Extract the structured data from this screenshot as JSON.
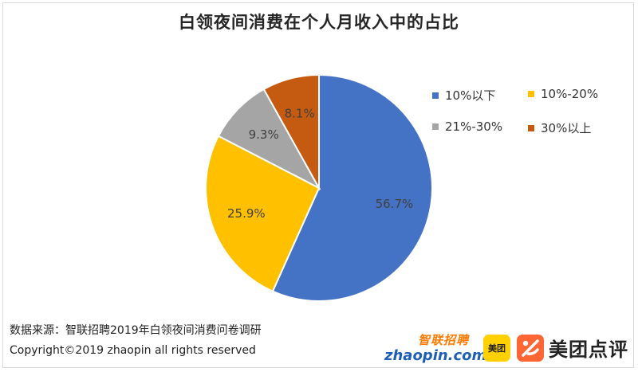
{
  "chart_data": {
    "type": "pie",
    "title": "白领夜间消费在个人月收入中的占比",
    "categories": [
      "10%以下",
      "10%-20%",
      "21%-30%",
      "30%以上"
    ],
    "values": [
      56.7,
      25.9,
      9.3,
      8.1
    ],
    "data_labels": [
      "56.7%",
      "25.9%",
      "9.3%",
      "8.1%"
    ],
    "colors": [
      "#4472c4",
      "#ffc000",
      "#a5a5a5",
      "#c55a11"
    ],
    "legend_position": "right"
  },
  "footer": {
    "source": "数据来源：智联招聘2019年白领夜间消费问卷调研",
    "copyright": "Copyright©2019 zhaopin all rights reserved"
  },
  "logos": {
    "zhaopin_cn": "智联招聘",
    "zhaopin_en": "zhaopin.com",
    "meituan": "美团",
    "meituan_dianping": "美团点评"
  }
}
